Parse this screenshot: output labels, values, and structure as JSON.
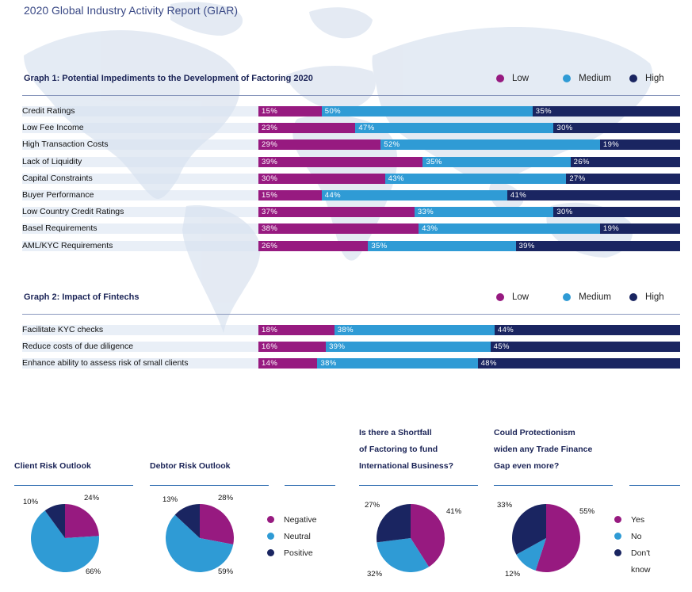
{
  "report_title": "2020 Global Industry Activity Report (GIAR)",
  "colors": {
    "low": "#971a80",
    "medium": "#2f9bd5",
    "high": "#1a2561"
  },
  "chart_data": [
    {
      "type": "bar",
      "stacked": true,
      "orientation": "horizontal",
      "title": "Graph 1: Potential Impediments to the Development of Factoring 2020",
      "legend": [
        "Low",
        "Medium",
        "High"
      ],
      "categories": [
        "Credit Ratings",
        "Low Fee Income",
        "High Transaction Costs",
        "Lack of Liquidity",
        "Capital Constraints",
        "Buyer Performance",
        "Low Country Credit Ratings",
        "Basel Requirements",
        "AML/KYC Requirements"
      ],
      "series": [
        {
          "name": "Low",
          "values": [
            15,
            23,
            29,
            39,
            30,
            15,
            37,
            38,
            26
          ]
        },
        {
          "name": "Medium",
          "values": [
            50,
            47,
            52,
            35,
            43,
            44,
            33,
            43,
            35
          ]
        },
        {
          "name": "High",
          "values": [
            35,
            30,
            19,
            26,
            27,
            41,
            30,
            19,
            39
          ]
        }
      ]
    },
    {
      "type": "bar",
      "stacked": true,
      "orientation": "horizontal",
      "title": "Graph 2: Impact of Fintechs",
      "legend": [
        "Low",
        "Medium",
        "High"
      ],
      "categories": [
        "Facilitate KYC checks",
        "Reduce costs of due diligence",
        "Enhance ability to assess risk of small clients"
      ],
      "series": [
        {
          "name": "Low",
          "values": [
            18,
            16,
            14
          ]
        },
        {
          "name": "Medium",
          "values": [
            38,
            39,
            38
          ]
        },
        {
          "name": "High",
          "values": [
            44,
            45,
            48
          ]
        }
      ]
    },
    {
      "type": "pie",
      "title": "Client Risk Outlook",
      "labels": [
        "Negative",
        "Neutral",
        "Positive"
      ],
      "values": [
        24,
        66,
        10
      ]
    },
    {
      "type": "pie",
      "title": "Debtor Risk Outlook",
      "labels": [
        "Negative",
        "Neutral",
        "Positive"
      ],
      "values": [
        28,
        59,
        13
      ]
    },
    {
      "type": "pie",
      "title_lines": [
        "Is there a Shortfall",
        "of Factoring to fund",
        "International Business?"
      ],
      "labels": [
        "Yes",
        "No",
        "Don't know"
      ],
      "values": [
        41,
        32,
        27
      ]
    },
    {
      "type": "pie",
      "title_lines": [
        "Could Protectionism",
        "widen any Trade Finance",
        "Gap even more?"
      ],
      "labels": [
        "Yes",
        "No",
        "Don't know"
      ],
      "values": [
        55,
        12,
        33
      ]
    }
  ],
  "pie_legend_1": [
    "Negative",
    "Neutral",
    "Positive"
  ],
  "pie_legend_2": [
    "Yes",
    "No",
    "Don't",
    "know"
  ]
}
